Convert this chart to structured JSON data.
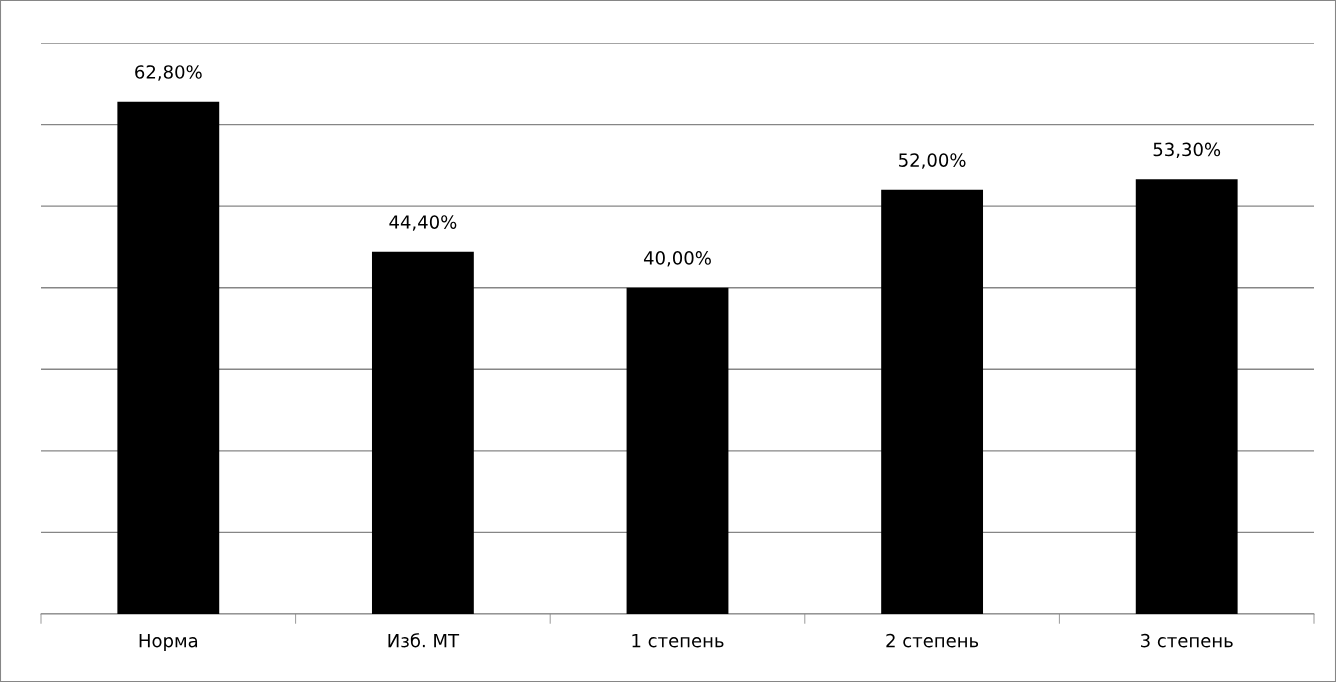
{
  "chart_data": {
    "type": "bar",
    "categories": [
      "Норма",
      "Изб. МТ",
      "1 степень",
      "2 степень",
      "3 степень"
    ],
    "values": [
      62.8,
      44.4,
      40.0,
      52.0,
      53.3
    ],
    "value_labels": [
      "62,80%",
      "44,40%",
      "40,00%",
      "52,00%",
      "53,30%"
    ],
    "color": "#000000",
    "ylim": [
      0,
      70
    ],
    "yticks": [
      {
        "value": 0,
        "label": null
      },
      {
        "value": 10,
        "label": null
      },
      {
        "value": 20,
        "label": null
      },
      {
        "value": 30,
        "label": null
      },
      {
        "value": 40,
        "label": null
      },
      {
        "value": 50,
        "label": null
      },
      {
        "value": 60,
        "label": null
      },
      {
        "value": 70,
        "label": null
      }
    ],
    "grid": "y",
    "tick_labels": "x"
  }
}
